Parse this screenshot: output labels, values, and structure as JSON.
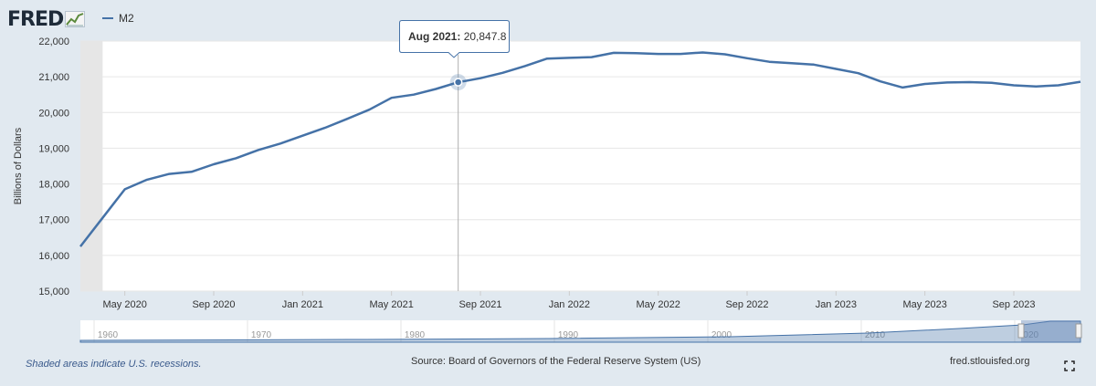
{
  "brand": {
    "logo_text": "FRED"
  },
  "legend": {
    "series_label": "M2"
  },
  "tooltip": {
    "date": "Aug 2021:",
    "value": "20,847.8"
  },
  "footer": {
    "recession_note": "Shaded areas indicate U.S. recessions.",
    "source": "Source: Board of Governors of the Federal Reserve System (US)",
    "site": "fred.stlouisfed.org"
  },
  "colors": {
    "line": "#4572a7",
    "background": "#e1e9f0",
    "recession_shade": "#e6e6e6"
  },
  "chart_data": {
    "type": "line",
    "title": "",
    "ylabel": "Billions of Dollars",
    "xlabel": "",
    "ylim": [
      15000,
      22000
    ],
    "yticks": [
      15000,
      16000,
      17000,
      18000,
      19000,
      20000,
      21000,
      22000
    ],
    "ytick_labels": [
      "15,000",
      "16,000",
      "17,000",
      "18,000",
      "19,000",
      "20,000",
      "21,000",
      "22,000"
    ],
    "xlim": [
      "2020-03",
      "2023-12"
    ],
    "xticks": [
      "2020-05",
      "2020-09",
      "2021-01",
      "2021-05",
      "2021-09",
      "2022-01",
      "2022-05",
      "2022-09",
      "2023-01",
      "2023-05",
      "2023-09"
    ],
    "xtick_labels": [
      "May 2020",
      "Sep 2020",
      "Jan 2021",
      "May 2021",
      "Sep 2021",
      "Jan 2022",
      "May 2022",
      "Sep 2022",
      "Jan 2023",
      "May 2023",
      "Sep 2023"
    ],
    "recession": [
      "2020-02",
      "2020-04"
    ],
    "highlight": {
      "date": "2021-08",
      "value": 20847.8
    },
    "series": [
      {
        "name": "M2",
        "color": "#4572a7",
        "x": [
          "2020-03",
          "2020-04",
          "2020-05",
          "2020-06",
          "2020-07",
          "2020-08",
          "2020-09",
          "2020-10",
          "2020-11",
          "2020-12",
          "2021-01",
          "2021-02",
          "2021-03",
          "2021-04",
          "2021-05",
          "2021-06",
          "2021-07",
          "2021-08",
          "2021-09",
          "2021-10",
          "2021-11",
          "2021-12",
          "2022-01",
          "2022-02",
          "2022-03",
          "2022-04",
          "2022-05",
          "2022-06",
          "2022-07",
          "2022-08",
          "2022-09",
          "2022-10",
          "2022-11",
          "2022-12",
          "2023-01",
          "2023-02",
          "2023-03",
          "2023-04",
          "2023-05",
          "2023-06",
          "2023-07",
          "2023-08",
          "2023-09",
          "2023-10",
          "2023-11",
          "2023-12"
        ],
        "values": [
          16250,
          17050,
          17850,
          18120,
          18280,
          18340,
          18550,
          18720,
          18950,
          19130,
          19350,
          19570,
          19820,
          20080,
          20410,
          20500,
          20660,
          20847.8,
          20960,
          21110,
          21300,
          21510,
          21530,
          21550,
          21670,
          21660,
          21640,
          21640,
          21680,
          21630,
          21520,
          21420,
          21380,
          21340,
          21220,
          21100,
          20870,
          20700,
          20800,
          20840,
          20850,
          20830,
          20760,
          20730,
          20760,
          20860
        ]
      }
    ]
  }
}
